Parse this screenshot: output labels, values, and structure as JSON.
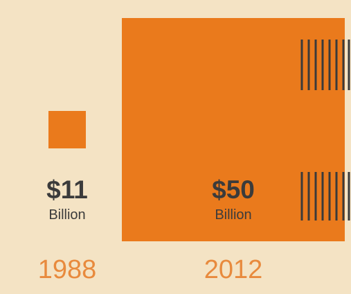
{
  "chart_data": {
    "type": "area-square",
    "title": "",
    "xlabel": "",
    "ylabel": "",
    "categories": [
      "1988",
      "2012"
    ],
    "values": [
      11,
      50
    ],
    "value_labels": [
      "$11",
      "$50"
    ],
    "unit_labels": [
      "Billion",
      "Billion"
    ],
    "partial_third_item": true
  },
  "colors": {
    "background": "#f4e3c4",
    "square": "#ea7a1c",
    "label_text": "#3b3b3b",
    "year_text": "#e88a3d",
    "hatch": "#3a3a3a"
  }
}
